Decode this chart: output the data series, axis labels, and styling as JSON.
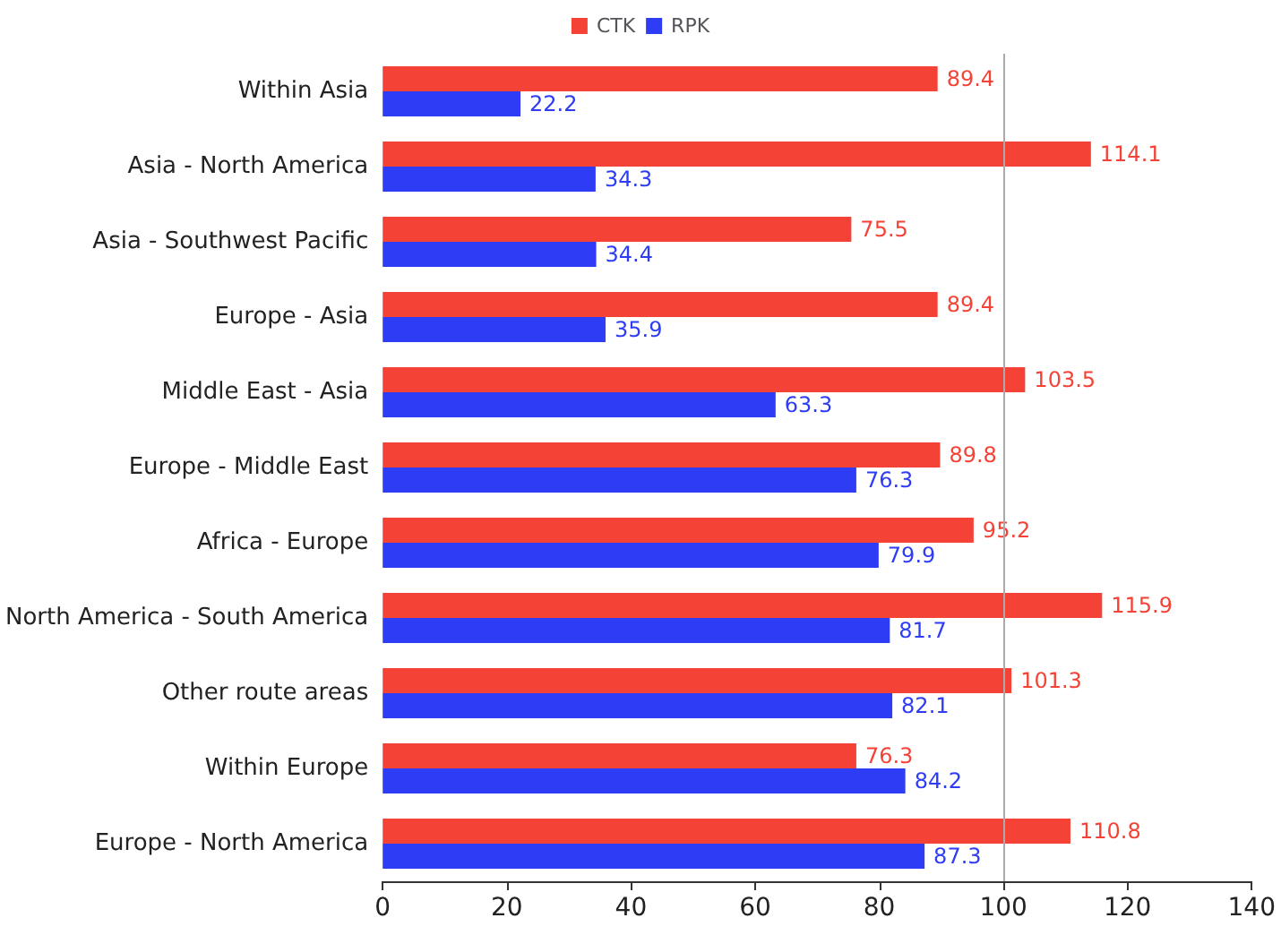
{
  "chart_data": {
    "type": "bar",
    "orientation": "horizontal",
    "categories": [
      "Within Asia",
      "Asia - North America",
      "Asia - Southwest Pacific",
      "Europe - Asia",
      "Middle East - Asia",
      "Europe - Middle East",
      "Africa - Europe",
      "North America - South America",
      "Other route areas",
      "Within Europe",
      "Europe - North America"
    ],
    "series": [
      {
        "name": "CTK",
        "color": "#f44336",
        "values": [
          89.4,
          114.1,
          75.5,
          89.4,
          103.5,
          89.8,
          95.2,
          115.9,
          101.3,
          76.3,
          110.8
        ]
      },
      {
        "name": "RPK",
        "color": "#2e3cf5",
        "values": [
          22.2,
          34.3,
          34.4,
          35.9,
          63.3,
          76.3,
          79.9,
          81.7,
          82.1,
          84.2,
          87.3
        ]
      }
    ],
    "xlim": [
      0,
      140
    ],
    "xticks": [
      0,
      20,
      40,
      60,
      80,
      100,
      120,
      140
    ],
    "ref_lines": [
      {
        "axis": "x",
        "value": 100,
        "color": "#aaaaaa"
      }
    ],
    "data_labels": true,
    "legend": "top",
    "grid": false
  }
}
